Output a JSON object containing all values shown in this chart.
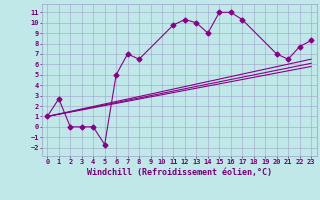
{
  "title": "",
  "xlabel": "Windchill (Refroidissement éolien,°C)",
  "ylabel": "",
  "bg_color": "#c0e8e8",
  "line_color": "#880088",
  "xlim": [
    -0.5,
    23.5
  ],
  "ylim": [
    -2.8,
    11.8
  ],
  "xticks": [
    0,
    1,
    2,
    3,
    4,
    5,
    6,
    7,
    8,
    9,
    10,
    11,
    12,
    13,
    14,
    15,
    16,
    17,
    18,
    19,
    20,
    21,
    22,
    23
  ],
  "yticks": [
    -2,
    -1,
    0,
    1,
    2,
    3,
    4,
    5,
    6,
    7,
    8,
    9,
    10,
    11
  ],
  "main_line_x": [
    0,
    1,
    2,
    3,
    4,
    5,
    6,
    7,
    8,
    11,
    12,
    13,
    14,
    15,
    16,
    17,
    20,
    21,
    22,
    23
  ],
  "main_line_y": [
    1,
    2.7,
    0,
    0,
    0,
    -1.7,
    5.0,
    7.0,
    6.5,
    9.8,
    10.3,
    10.0,
    9.0,
    11.0,
    11.0,
    10.3,
    7.0,
    6.5,
    7.7,
    8.3
  ],
  "reg_lines": [
    {
      "x": [
        0,
        23
      ],
      "y": [
        1.0,
        6.5
      ]
    },
    {
      "x": [
        0,
        23
      ],
      "y": [
        1.0,
        6.1
      ]
    },
    {
      "x": [
        0,
        23
      ],
      "y": [
        1.0,
        5.8
      ]
    }
  ],
  "font_color": "#770077",
  "grid_color": "#a0a0cc",
  "marker": "D",
  "markersize": 2.5,
  "linewidth": 0.8,
  "xlabel_fontsize": 6.0,
  "tick_fontsize": 5.0
}
